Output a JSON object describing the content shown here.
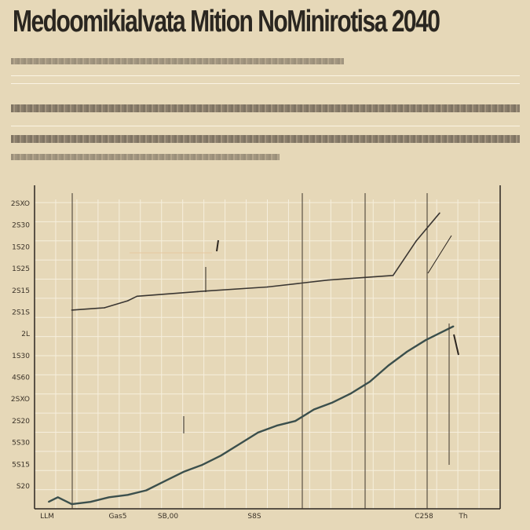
{
  "header": {
    "title": "Medoomikialvata Mition NoMinirotisa 2040"
  },
  "chart_data": {
    "type": "line",
    "title": "Medoomikialvata Mition NoMinirotisa 2040",
    "y_tick_labels": [
      "2SXO",
      "2S30",
      "1S20",
      "1S25",
      "2S15",
      "2S1S",
      "2L",
      "1S30",
      "4S60",
      "2SXO",
      "2S20",
      "5S30",
      "5S15",
      "S20"
    ],
    "x_tick_labels": [
      "LLM",
      "Gas5",
      "SB,00",
      "S8S",
      "C258",
      "Th"
    ],
    "ylim": [
      0,
      14
    ],
    "xlim": [
      0,
      100
    ],
    "series": [
      {
        "color": "#3a3632",
        "points": [
          [
            8,
            8.6
          ],
          [
            15,
            8.7
          ],
          [
            20,
            9.0
          ],
          [
            22,
            9.2
          ],
          [
            35,
            9.4
          ],
          [
            50,
            9.6
          ],
          [
            63,
            9.9
          ],
          [
            77,
            10.1
          ],
          [
            82,
            11.6
          ],
          [
            87,
            12.8
          ]
        ]
      },
      {
        "color": "#3b4f4c",
        "points": [
          [
            3,
            0.3
          ],
          [
            5,
            0.5
          ],
          [
            8,
            0.2
          ],
          [
            12,
            0.3
          ],
          [
            16,
            0.5
          ],
          [
            20,
            0.6
          ],
          [
            24,
            0.8
          ],
          [
            28,
            1.2
          ],
          [
            32,
            1.6
          ],
          [
            36,
            1.9
          ],
          [
            40,
            2.3
          ],
          [
            44,
            2.8
          ],
          [
            48,
            3.3
          ],
          [
            52,
            3.6
          ],
          [
            56,
            3.8
          ],
          [
            60,
            4.3
          ],
          [
            64,
            4.6
          ],
          [
            68,
            5.0
          ],
          [
            72,
            5.5
          ],
          [
            76,
            6.2
          ],
          [
            80,
            6.8
          ],
          [
            84,
            7.3
          ],
          [
            87,
            7.6
          ],
          [
            90,
            7.9
          ]
        ]
      }
    ],
    "grid": true
  }
}
